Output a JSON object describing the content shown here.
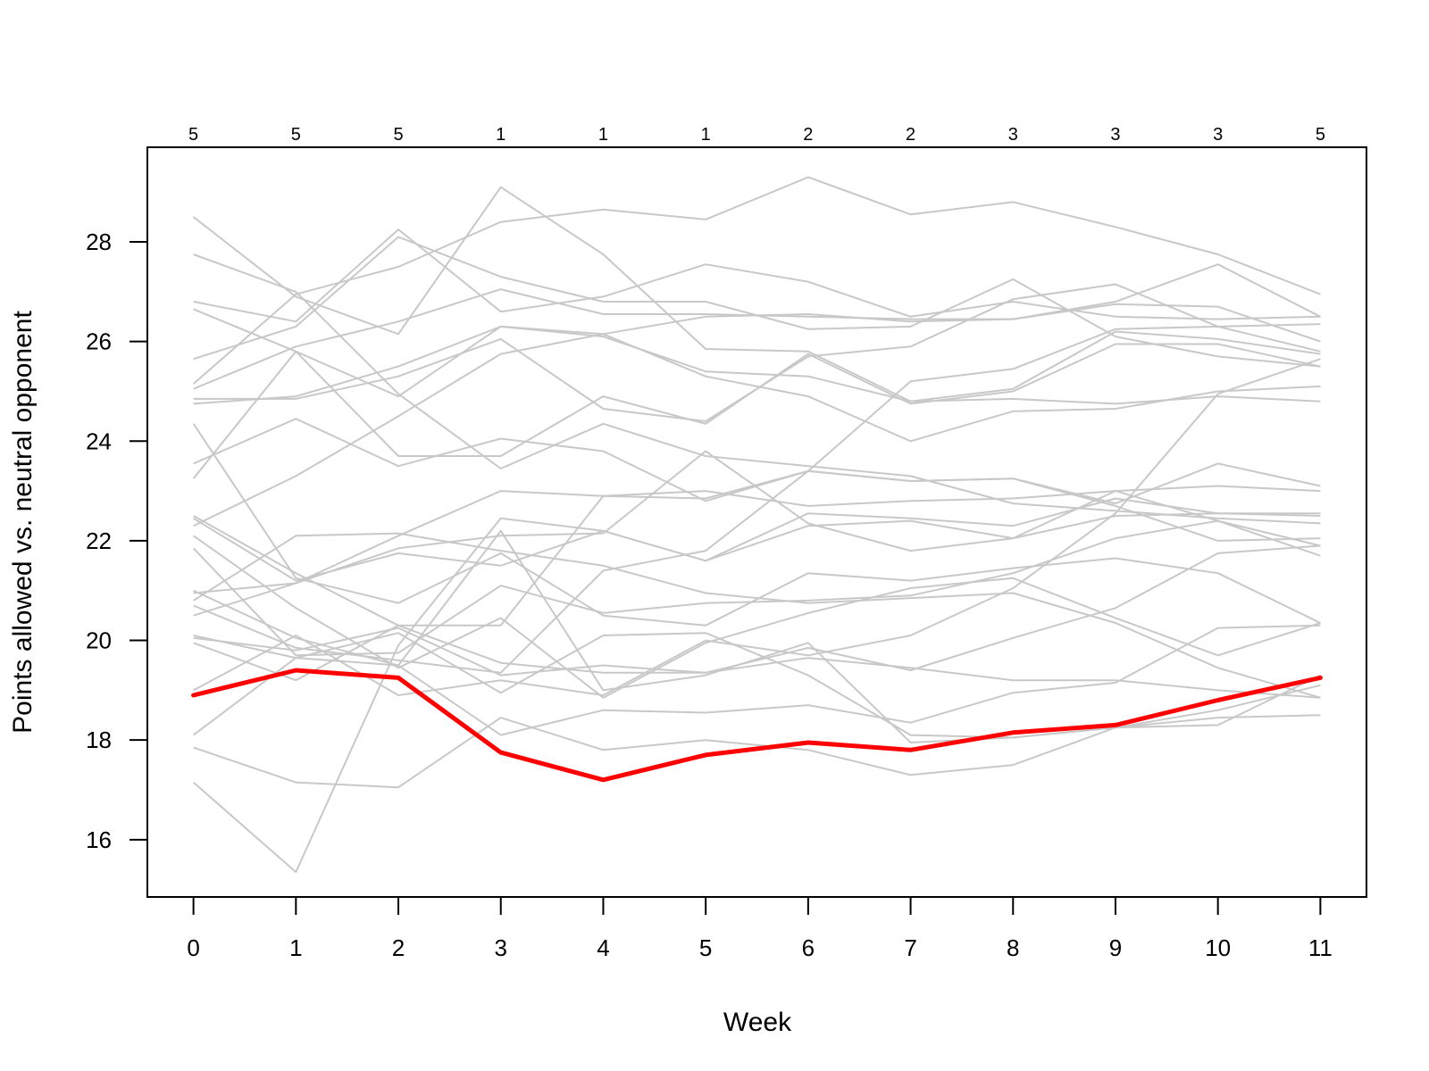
{
  "chart_data": {
    "type": "line",
    "title": "",
    "xlabel": "Week",
    "ylabel": "Points allowed vs. neutral opponent",
    "x": [
      0,
      1,
      2,
      3,
      4,
      5,
      6,
      7,
      8,
      9,
      10,
      11
    ],
    "x_tick_labels": [
      "0",
      "1",
      "2",
      "3",
      "4",
      "5",
      "6",
      "7",
      "8",
      "9",
      "10",
      "11"
    ],
    "y_ticks": [
      16,
      18,
      20,
      22,
      24,
      26,
      28
    ],
    "y_tick_labels": [
      "16",
      "18",
      "20",
      "22",
      "24",
      "26",
      "28"
    ],
    "xlim": [
      -0.45,
      11.45
    ],
    "ylim": [
      14.85,
      29.9
    ],
    "grid": false,
    "legend": "none",
    "top_labels": [
      "5",
      "5",
      "5",
      "1",
      "1",
      "1",
      "2",
      "2",
      "3",
      "3",
      "3",
      "5"
    ],
    "background_color": "#c8c8c8",
    "highlight_color": "#ff0000",
    "highlight": {
      "values": [
        18.9,
        19.4,
        19.25,
        17.75,
        17.2,
        17.7,
        17.95,
        17.8,
        18.15,
        18.3,
        18.8,
        19.25
      ]
    },
    "background_series": [
      {
        "values": [
          28.5,
          26.9,
          26.15,
          29.1,
          27.75,
          25.85,
          25.8,
          24.8,
          24.85,
          24.75,
          24.9,
          24.8
        ]
      },
      {
        "values": [
          26.8,
          26.4,
          28.25,
          26.6,
          26.9,
          27.55,
          27.2,
          26.5,
          26.8,
          26.5,
          26.45,
          26.5
        ]
      },
      {
        "values": [
          25.65,
          26.3,
          28.1,
          27.3,
          26.8,
          26.8,
          26.25,
          26.3,
          27.25,
          26.1,
          25.7,
          25.5
        ]
      },
      {
        "values": [
          25.15,
          26.95,
          27.5,
          28.4,
          28.65,
          28.45,
          29.3,
          28.55,
          28.8,
          28.3,
          27.75,
          26.95
        ]
      },
      {
        "values": [
          27.75,
          27.0,
          24.95,
          23.45,
          24.35,
          23.7,
          23.5,
          23.3,
          22.75,
          22.6,
          22.45,
          22.35
        ]
      },
      {
        "values": [
          26.65,
          25.8,
          24.9,
          26.3,
          26.1,
          25.4,
          25.3,
          24.8,
          25.05,
          26.2,
          26.05,
          25.75
        ]
      },
      {
        "values": [
          25.05,
          25.9,
          26.4,
          27.05,
          26.55,
          26.55,
          26.5,
          26.45,
          26.45,
          26.75,
          26.7,
          26.0
        ]
      },
      {
        "values": [
          24.75,
          24.9,
          25.5,
          26.3,
          26.15,
          25.3,
          24.9,
          24.0,
          24.6,
          24.65,
          25.0,
          25.1
        ]
      },
      {
        "values": [
          24.85,
          24.85,
          25.3,
          26.05,
          24.65,
          24.4,
          25.7,
          25.9,
          26.85,
          27.15,
          26.3,
          26.35
        ]
      },
      {
        "values": [
          23.55,
          24.45,
          23.5,
          24.05,
          23.8,
          22.8,
          23.4,
          23.2,
          23.25,
          22.7,
          22.0,
          22.05
        ]
      },
      {
        "values": [
          23.25,
          25.8,
          23.7,
          23.7,
          24.9,
          24.35,
          25.75,
          24.75,
          25.0,
          25.95,
          25.95,
          25.5
        ]
      },
      {
        "values": [
          24.35,
          21.25,
          20.75,
          21.75,
          20.5,
          20.3,
          21.35,
          21.2,
          21.45,
          21.65,
          21.35,
          20.35
        ]
      },
      {
        "values": [
          22.3,
          23.3,
          24.5,
          25.75,
          26.15,
          26.5,
          26.55,
          26.4,
          26.45,
          26.8,
          27.55,
          26.5
        ]
      },
      {
        "values": [
          22.5,
          21.35,
          20.3,
          19.55,
          19.35,
          19.35,
          19.65,
          19.45,
          19.2,
          19.2,
          19.0,
          18.85
        ]
      },
      {
        "values": [
          22.45,
          21.2,
          21.75,
          21.5,
          22.2,
          21.6,
          22.3,
          22.4,
          22.05,
          22.5,
          22.55,
          22.55
        ]
      },
      {
        "values": [
          21.85,
          19.7,
          19.75,
          21.1,
          20.55,
          20.75,
          20.8,
          20.9,
          21.35,
          22.05,
          22.4,
          21.7
        ]
      },
      {
        "values": [
          20.95,
          21.15,
          22.1,
          23.0,
          22.9,
          23.0,
          22.7,
          22.8,
          22.85,
          23.0,
          23.1,
          23.0
        ]
      },
      {
        "values": [
          20.5,
          21.15,
          21.85,
          22.1,
          22.15,
          23.8,
          22.35,
          21.8,
          22.05,
          23.0,
          22.4,
          21.9
        ]
      },
      {
        "values": [
          20.8,
          22.1,
          22.15,
          21.8,
          21.5,
          20.95,
          20.75,
          20.85,
          20.95,
          20.35,
          19.45,
          18.85
        ]
      },
      {
        "values": [
          20.05,
          19.8,
          20.25,
          19.3,
          19.5,
          19.35,
          19.85,
          19.4,
          20.05,
          20.65,
          21.75,
          21.9
        ]
      },
      {
        "values": [
          20.1,
          19.65,
          19.5,
          18.1,
          18.6,
          18.55,
          18.7,
          18.35,
          18.95,
          19.15,
          20.25,
          20.3
        ]
      },
      {
        "values": [
          19.95,
          19.2,
          20.3,
          20.3,
          22.9,
          22.85,
          23.4,
          23.2,
          23.25,
          22.75,
          23.55,
          23.1
        ]
      },
      {
        "values": [
          19.0,
          20.1,
          18.9,
          19.2,
          18.9,
          20.0,
          19.7,
          20.1,
          21.05,
          22.55,
          24.95,
          25.65
        ]
      },
      {
        "values": [
          18.1,
          19.65,
          20.15,
          18.95,
          20.1,
          20.15,
          19.3,
          18.1,
          18.05,
          18.25,
          18.45,
          18.5
        ]
      },
      {
        "values": [
          17.85,
          17.15,
          17.05,
          18.45,
          17.8,
          18.0,
          17.8,
          17.3,
          17.5,
          18.25,
          18.3,
          19.3
        ]
      },
      {
        "values": [
          17.15,
          15.35,
          19.9,
          22.45,
          22.2,
          21.6,
          22.55,
          22.45,
          22.3,
          22.85,
          22.55,
          22.5
        ]
      },
      {
        "values": [
          21.0,
          20.05,
          19.5,
          22.2,
          19.0,
          19.3,
          19.95,
          17.95,
          18.05,
          18.25,
          18.6,
          19.1
        ]
      },
      {
        "values": [
          20.7,
          19.85,
          19.6,
          19.35,
          21.4,
          21.8,
          23.4,
          25.2,
          25.45,
          26.25,
          26.3,
          25.8
        ]
      },
      {
        "values": [
          22.1,
          20.65,
          19.45,
          20.45,
          18.85,
          19.95,
          20.55,
          21.05,
          21.25,
          20.45,
          19.7,
          20.35
        ]
      }
    ]
  }
}
